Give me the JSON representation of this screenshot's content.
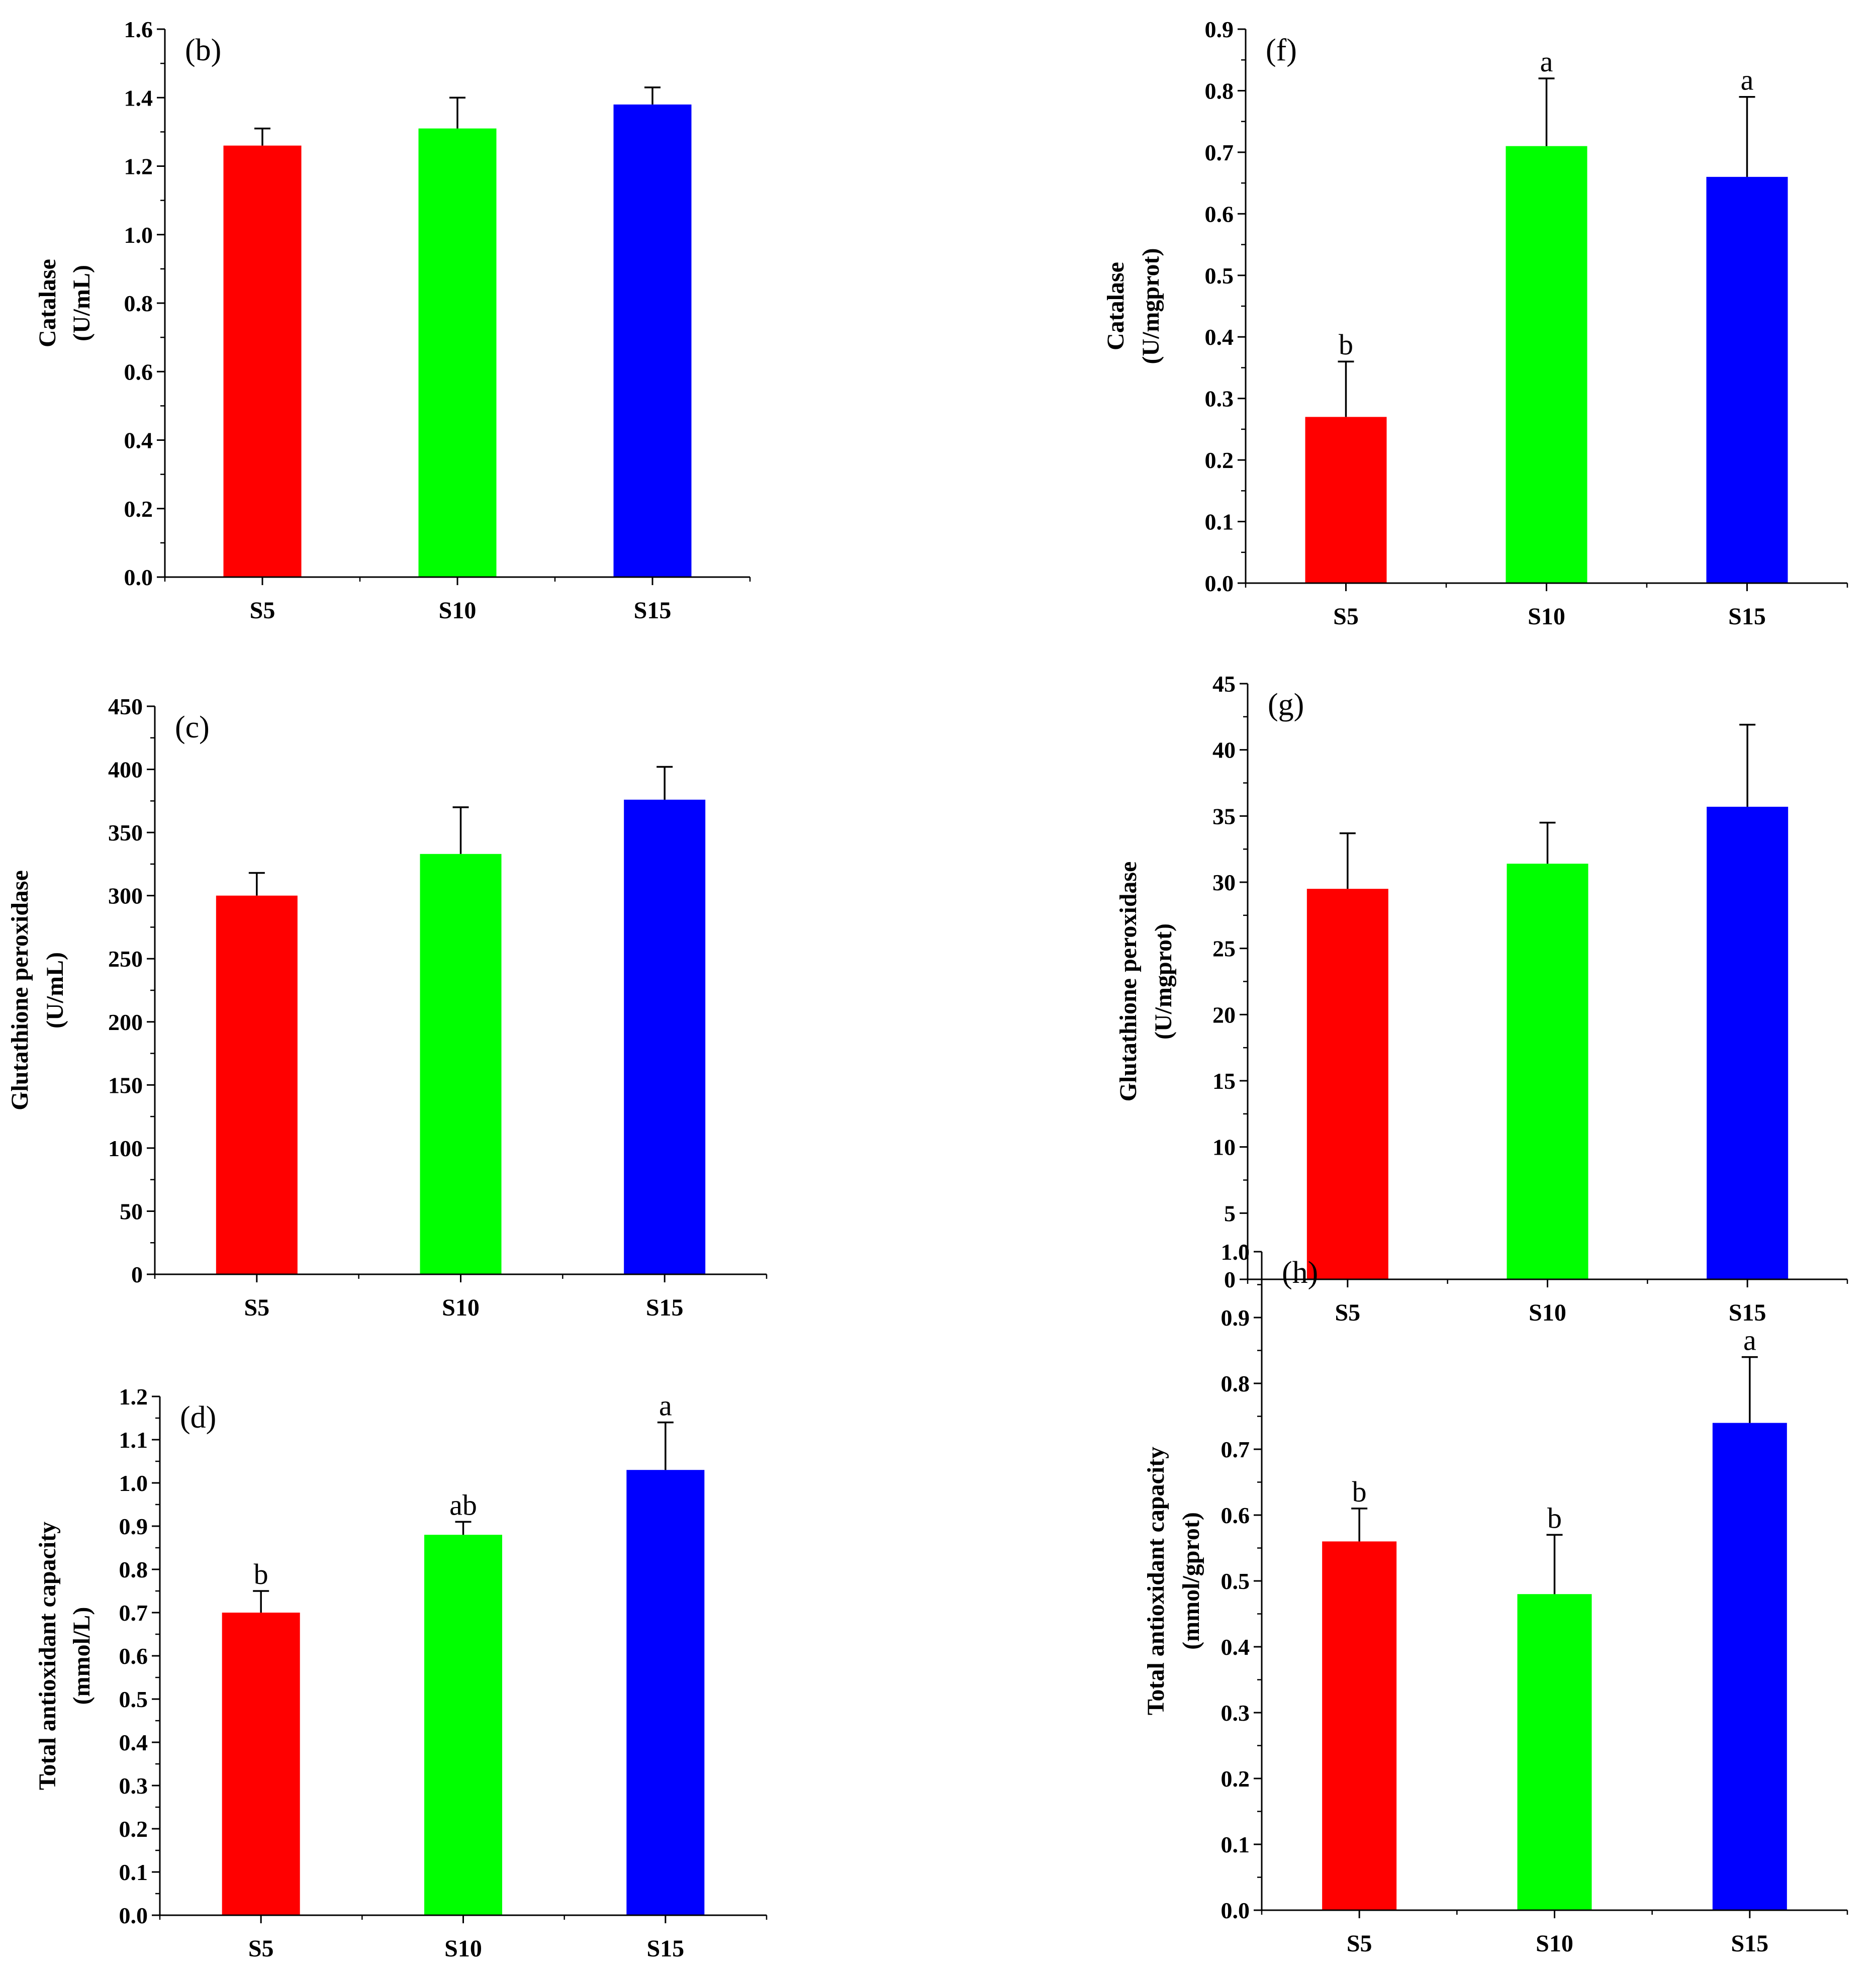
{
  "chart_data": [
    {
      "type": "bar",
      "panel": "(b)",
      "categories": [
        "S5",
        "S10",
        "S15"
      ],
      "values": [
        1.26,
        1.31,
        1.38
      ],
      "errors": [
        0.05,
        0.09,
        0.05
      ],
      "significance": [
        "",
        "",
        ""
      ],
      "ylabel": [
        "Catalase",
        "(U/mL)"
      ],
      "ylim": [
        0,
        1.6
      ],
      "yticks": [
        0,
        0.2,
        0.4,
        0.6,
        0.8,
        1.0,
        1.2,
        1.4,
        1.6
      ],
      "ytick_labels": [
        "0.0",
        "0.2",
        "0.4",
        "0.6",
        "0.8",
        "1.0",
        "1.2",
        "1.4",
        "1.6"
      ],
      "colors": [
        "#ff0000",
        "#00ff00",
        "#0000ff"
      ]
    },
    {
      "type": "bar",
      "panel": "(f)",
      "categories": [
        "S5",
        "S10",
        "S15"
      ],
      "values": [
        0.27,
        0.71,
        0.66
      ],
      "errors": [
        0.09,
        0.11,
        0.13
      ],
      "significance": [
        "b",
        "a",
        "a"
      ],
      "ylabel": [
        "Catalase",
        "(U/mgprot)"
      ],
      "ylim": [
        0,
        0.9
      ],
      "yticks": [
        0,
        0.1,
        0.2,
        0.3,
        0.4,
        0.5,
        0.6,
        0.7,
        0.8,
        0.9
      ],
      "ytick_labels": [
        "0.0",
        "0.1",
        "0.2",
        "0.3",
        "0.4",
        "0.5",
        "0.6",
        "0.7",
        "0.8",
        "0.9"
      ],
      "colors": [
        "#ff0000",
        "#00ff00",
        "#0000ff"
      ]
    },
    {
      "type": "bar",
      "panel": "(c)",
      "categories": [
        "S5",
        "S10",
        "S15"
      ],
      "values": [
        300,
        333,
        376
      ],
      "errors": [
        18,
        37,
        26
      ],
      "significance": [
        "",
        "",
        ""
      ],
      "ylabel": [
        "Glutathione peroxidase",
        "(U/mL)"
      ],
      "ylim": [
        0,
        450
      ],
      "yticks": [
        0,
        50,
        100,
        150,
        200,
        250,
        300,
        350,
        400,
        450
      ],
      "ytick_labels": [
        "0",
        "50",
        "100",
        "150",
        "200",
        "250",
        "300",
        "350",
        "400",
        "450"
      ],
      "colors": [
        "#ff0000",
        "#00ff00",
        "#0000ff"
      ]
    },
    {
      "type": "bar",
      "panel": "(g)",
      "categories": [
        "S5",
        "S10",
        "S15"
      ],
      "values": [
        29.5,
        31.4,
        35.7
      ],
      "errors": [
        4.2,
        3.1,
        6.2
      ],
      "significance": [
        "",
        "",
        ""
      ],
      "ylabel": [
        "Glutathione peroxidase",
        "(U/mgprot)"
      ],
      "ylim": [
        0,
        45
      ],
      "yticks": [
        0,
        5,
        10,
        15,
        20,
        25,
        30,
        35,
        40,
        45
      ],
      "ytick_labels": [
        "0",
        "5",
        "10",
        "15",
        "20",
        "25",
        "30",
        "35",
        "40",
        "45"
      ],
      "colors": [
        "#ff0000",
        "#00ff00",
        "#0000ff"
      ]
    },
    {
      "type": "bar",
      "panel": "(d)",
      "categories": [
        "S5",
        "S10",
        "S15"
      ],
      "values": [
        0.7,
        0.88,
        1.03
      ],
      "errors": [
        0.05,
        0.03,
        0.11
      ],
      "significance": [
        "b",
        "ab",
        "a"
      ],
      "ylabel": [
        "Total antioxidant capacity",
        "(mmol/L)"
      ],
      "ylim": [
        0,
        1.2
      ],
      "yticks": [
        0,
        0.1,
        0.2,
        0.3,
        0.4,
        0.5,
        0.6,
        0.7,
        0.8,
        0.9,
        1.0,
        1.1,
        1.2
      ],
      "ytick_labels": [
        "0.0",
        "0.1",
        "0.2",
        "0.3",
        "0.4",
        "0.5",
        "0.6",
        "0.7",
        "0.8",
        "0.9",
        "1.0",
        "1.1",
        "1.2"
      ],
      "colors": [
        "#ff0000",
        "#00ff00",
        "#0000ff"
      ]
    },
    {
      "type": "bar",
      "panel": "(h)",
      "categories": [
        "S5",
        "S10",
        "S15"
      ],
      "values": [
        0.56,
        0.48,
        0.74
      ],
      "errors": [
        0.05,
        0.09,
        0.1
      ],
      "significance": [
        "b",
        "b",
        "a"
      ],
      "ylabel": [
        "Total antioxidant capacity",
        "(mmol/gprot)"
      ],
      "ylim": [
        0,
        1.0
      ],
      "yticks": [
        0,
        0.1,
        0.2,
        0.3,
        0.4,
        0.5,
        0.6,
        0.7,
        0.8,
        0.9,
        1.0
      ],
      "ytick_labels": [
        "0.0",
        "0.1",
        "0.2",
        "0.3",
        "0.4",
        "0.5",
        "0.6",
        "0.7",
        "0.8",
        "0.9",
        "1.0"
      ],
      "colors": [
        "#ff0000",
        "#00ff00",
        "#0000ff"
      ]
    }
  ]
}
